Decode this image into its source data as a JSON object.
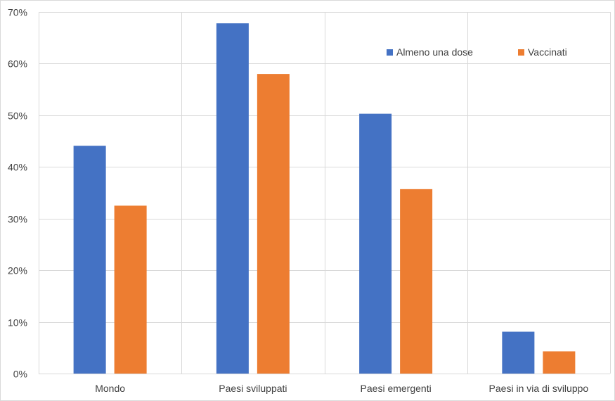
{
  "chart_data": {
    "type": "bar",
    "categories": [
      "Mondo",
      "Paesi sviluppati",
      "Paesi emergenti",
      "Paesi in via di sviluppo"
    ],
    "series": [
      {
        "name": "Almeno una dose",
        "values": [
          44.1,
          67.8,
          50.3,
          8.1
        ],
        "color": "#4472C4"
      },
      {
        "name": "Vaccinati",
        "values": [
          32.5,
          58.0,
          35.7,
          4.3
        ],
        "color": "#ED7D31"
      }
    ],
    "yticks": [
      "0%",
      "10%",
      "20%",
      "30%",
      "40%",
      "50%",
      "60%",
      "70%"
    ],
    "ylim": [
      0,
      70
    ],
    "grid": true,
    "legend_position": "top-right"
  }
}
